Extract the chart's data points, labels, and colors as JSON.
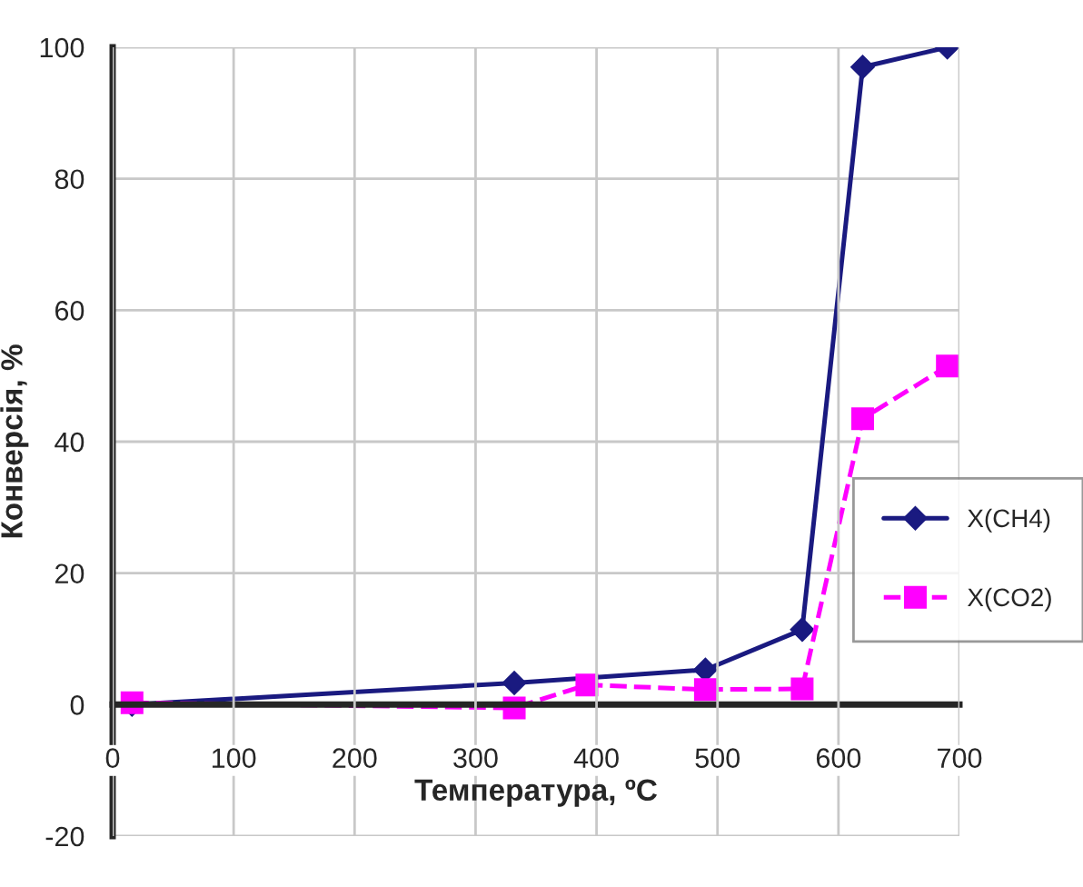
{
  "chart_data": {
    "type": "line",
    "xlabel": "Температура, ºC",
    "ylabel": "Конверсія, %",
    "xlim": [
      0,
      700
    ],
    "xticks": [
      0,
      100,
      200,
      300,
      400,
      500,
      600,
      700
    ],
    "ylim": [
      -20,
      100
    ],
    "yticks": [
      -20,
      0,
      20,
      40,
      60,
      80,
      100
    ],
    "grid": true,
    "legend": "right",
    "series": [
      {
        "name": "X(CH4)",
        "color": "#1a1a80",
        "marker": "diamond",
        "line_style": "solid",
        "x": [
          16,
          332,
          490,
          570,
          620,
          690
        ],
        "values": [
          0,
          3.3,
          5.3,
          11.4,
          97,
          100
        ]
      },
      {
        "name": "X(CO2)",
        "color": "#ff00ff",
        "marker": "square",
        "line_style": "dashed",
        "x": [
          16,
          332,
          392,
          490,
          570,
          620,
          690
        ],
        "values": [
          0.3,
          -0.5,
          3,
          2.3,
          2.4,
          43.5,
          51.5
        ]
      }
    ]
  }
}
